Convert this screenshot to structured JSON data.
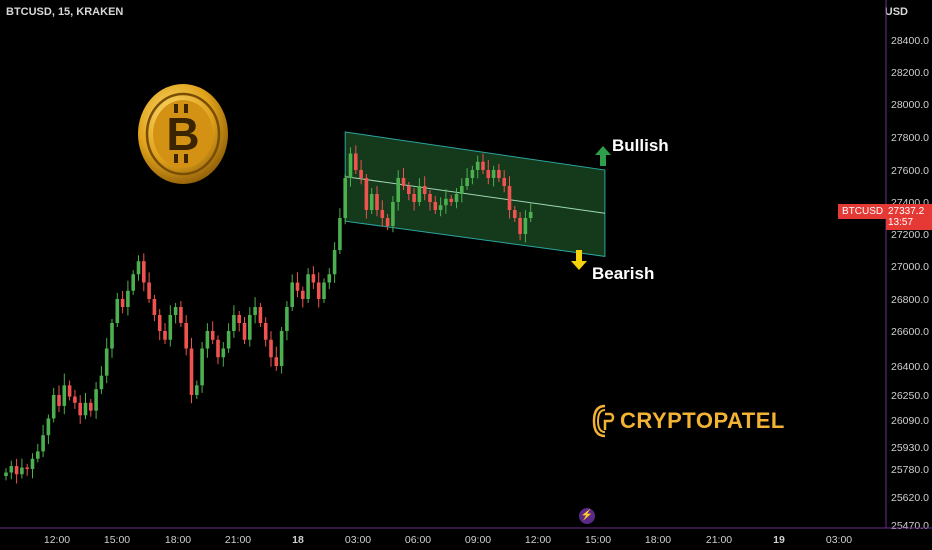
{
  "header": {
    "symbol_line": "BTCUSD, 15, KRAKEN",
    "currency": "USD"
  },
  "annotations": {
    "bullish": "Bullish",
    "bearish": "Bearish",
    "bull_arrow_color": "#2e9e4a",
    "bear_arrow_color": "#f5d20a"
  },
  "price_tag": {
    "symbol": "BTCUSD",
    "price": "27337.2",
    "countdown": "13:57"
  },
  "brand": {
    "name": "CRYPTOPATEL",
    "logo_icon": "cryptopatel-logo-icon",
    "coin_icon": "bitcoin-coin-icon"
  },
  "colors": {
    "up": "#26a69a",
    "up_candle": "#4caf50",
    "down_candle": "#ef5350",
    "channel_fill": "#1b4d24",
    "channel_line": "#2aa6a0",
    "accent_gold": "#f2b233"
  },
  "chart_data": {
    "type": "candlestick",
    "y_axis_ticks": [
      "28400.0",
      "28200.0",
      "28000.0",
      "27800.0",
      "27600.0",
      "27400.0",
      "27200.0",
      "27000.0",
      "26800.0",
      "26600.0",
      "26400.0",
      "26250.0",
      "26090.0",
      "25930.0",
      "25780.0",
      "25620.0",
      "25470.0"
    ],
    "x_axis_ticks": [
      "12:00",
      "15:00",
      "18:00",
      "21:00",
      "18",
      "03:00",
      "06:00",
      "09:00",
      "12:00",
      "15:00",
      "18:00",
      "21:00",
      "19",
      "03:00"
    ],
    "close_series": [
      25760,
      25800,
      25750,
      25790,
      25780,
      25850,
      25900,
      26000,
      26100,
      26250,
      26180,
      26300,
      26240,
      26200,
      26120,
      26200,
      26150,
      26280,
      26350,
      26500,
      26650,
      26800,
      26750,
      26850,
      26950,
      27030,
      26900,
      26800,
      26700,
      26600,
      26550,
      26700,
      26750,
      26650,
      26500,
      26250,
      26300,
      26500,
      26600,
      26550,
      26450,
      26500,
      26600,
      26700,
      26650,
      26550,
      26700,
      26750,
      26650,
      26550,
      26450,
      26400,
      26600,
      26750,
      26900,
      26850,
      26800,
      26950,
      26900,
      26800,
      26900,
      26950,
      27100,
      27300,
      27550,
      27700,
      27600,
      27550,
      27350,
      27450,
      27350,
      27300,
      27250,
      27400,
      27550,
      27500,
      27450,
      27400,
      27500,
      27450,
      27400,
      27350,
      27380,
      27420,
      27400,
      27450,
      27500,
      27550,
      27600,
      27650,
      27600,
      27550,
      27600,
      27550,
      27500,
      27350,
      27300,
      27200,
      27300,
      27337.2
    ],
    "channel": {
      "upper_start": 27830,
      "upper_end": 27600,
      "lower_start": 27280,
      "lower_end": 27060,
      "start_index": 64,
      "end_index": 113
    }
  }
}
